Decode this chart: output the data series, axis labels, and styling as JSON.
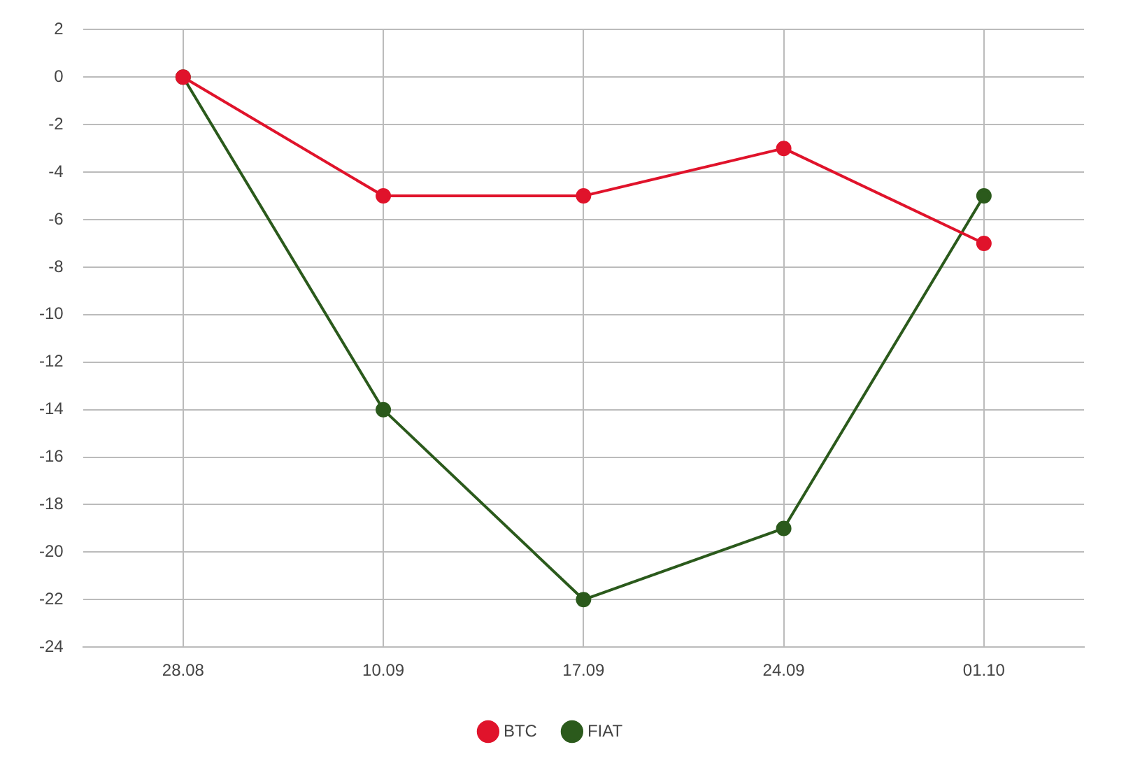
{
  "chart_data": {
    "type": "line",
    "categories": [
      "28.08",
      "10.09",
      "17.09",
      "24.09",
      "01.10"
    ],
    "series": [
      {
        "name": "BTC",
        "color": "#e0132b",
        "values": [
          0,
          -5,
          -5,
          -3,
          -7
        ]
      },
      {
        "name": "FIAT",
        "color": "#2b5a1c",
        "values": [
          0,
          -14,
          -22,
          -19,
          -5
        ]
      }
    ],
    "ylim": [
      -24,
      2
    ],
    "yticks": [
      2,
      0,
      -2,
      -4,
      -6,
      -8,
      -10,
      -12,
      -14,
      -16,
      -18,
      -20,
      -22,
      -24
    ],
    "grid": true,
    "legend": "bottom",
    "marker": "circle",
    "line_style": "solid"
  }
}
